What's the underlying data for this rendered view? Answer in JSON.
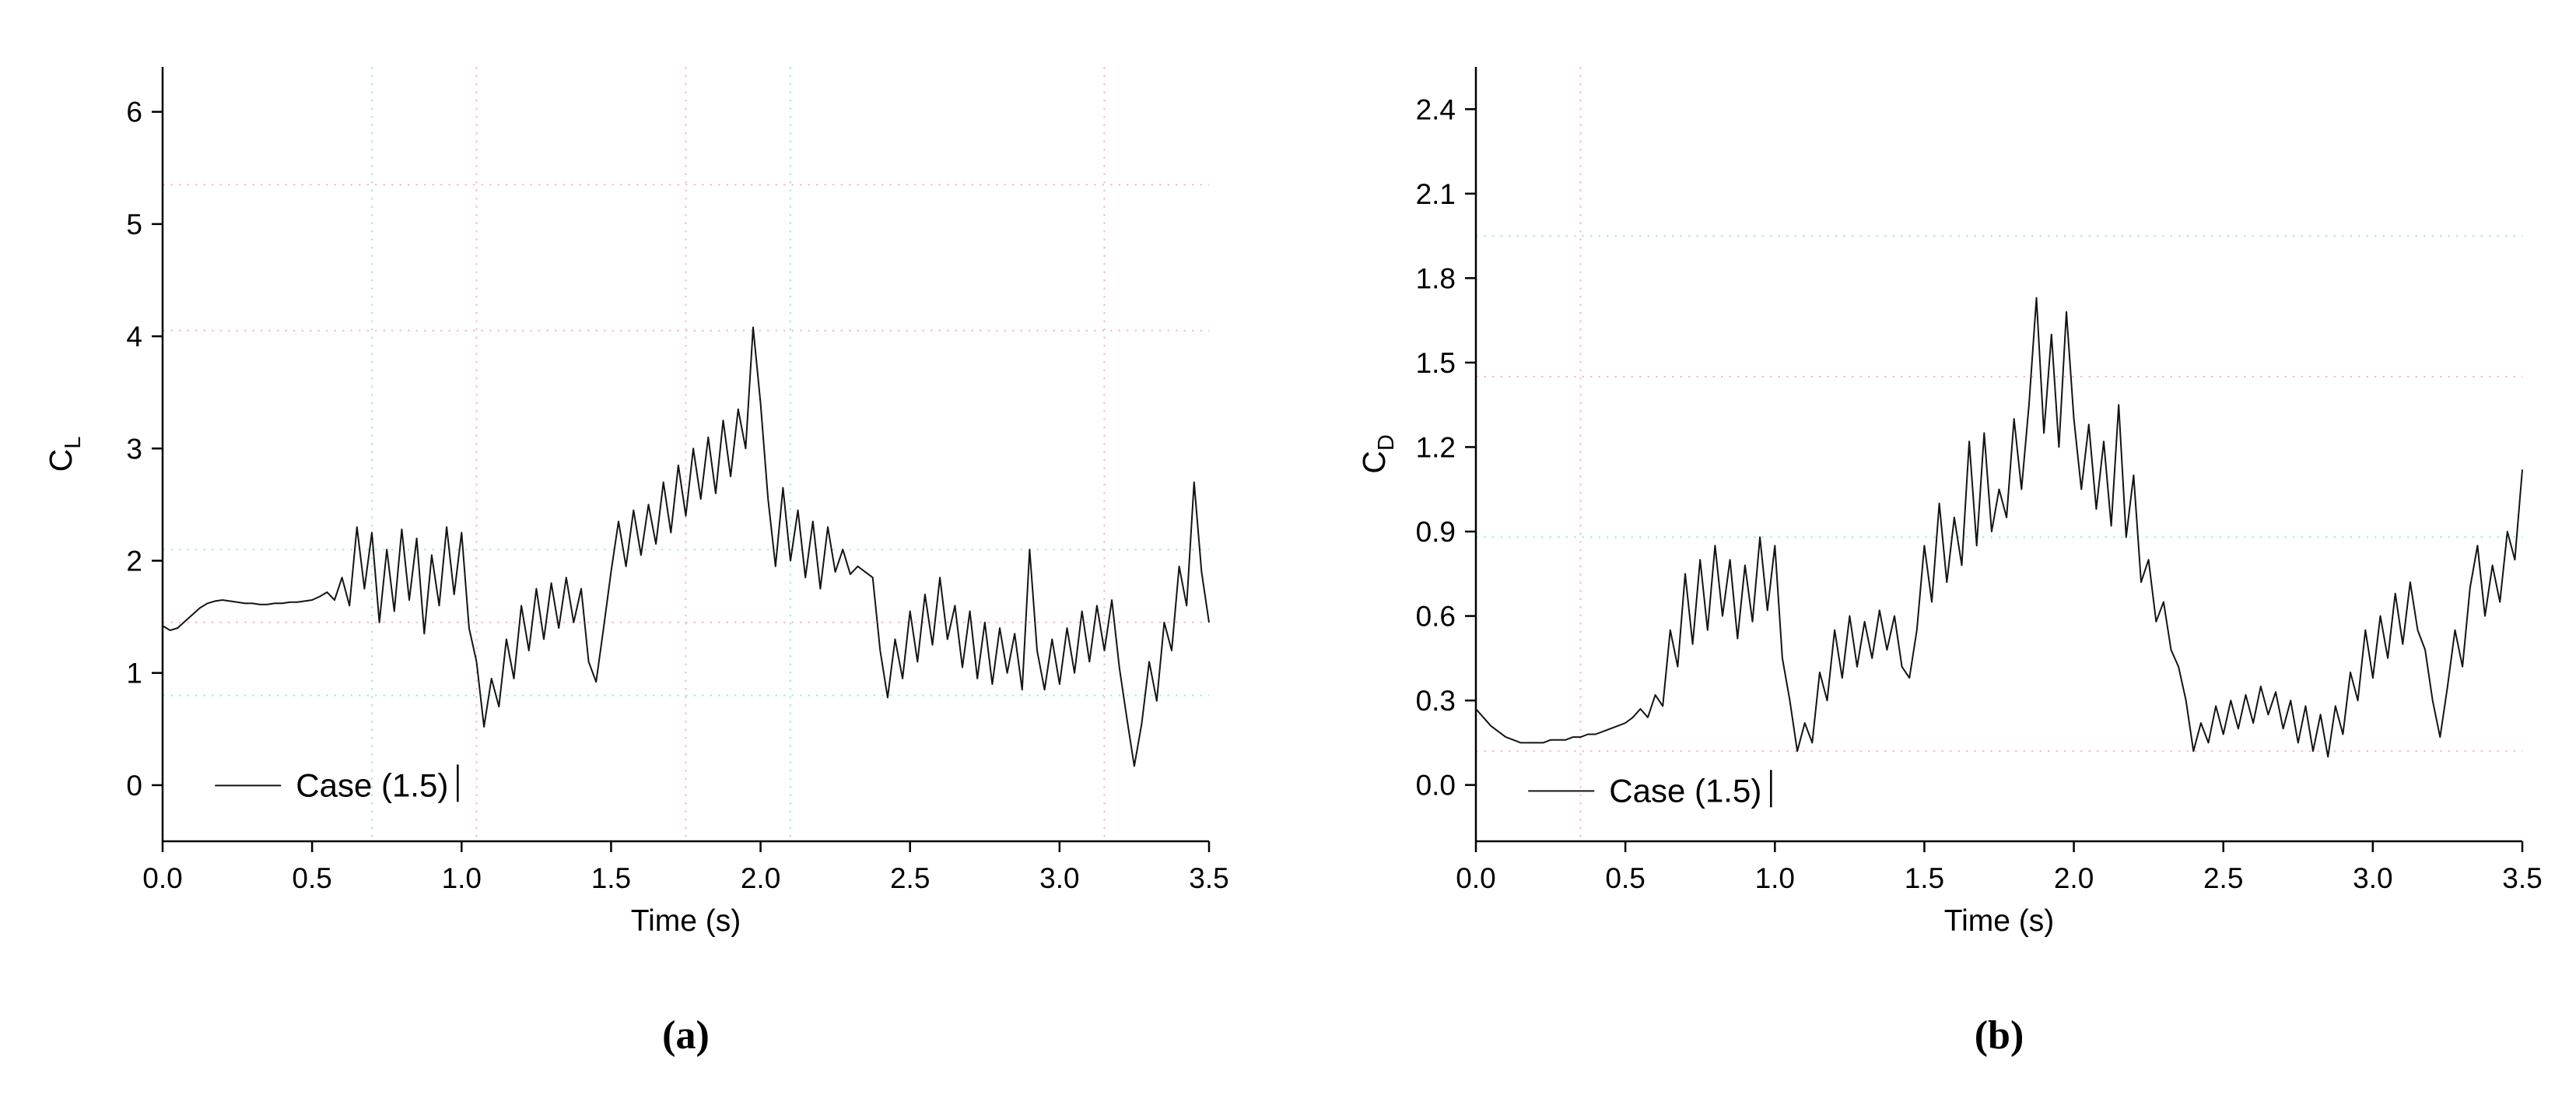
{
  "page": {
    "background": "#ffffff"
  },
  "captions": {
    "a": "(a)",
    "b": "(b)"
  },
  "colors": {
    "line": "#141414",
    "axis": "#000000",
    "grid_pink": "#f8b7d4",
    "grid_cyan": "#a5e9e5"
  },
  "chart_data": [
    {
      "type": "line",
      "title": "",
      "xlabel": "Time (s)",
      "ylabel": "C_L",
      "ylabel_main": "C",
      "ylabel_sub": "L",
      "xlim": [
        0,
        3.5
      ],
      "ylim": [
        0,
        6
      ],
      "ylim_display": [
        -0.5,
        6.4
      ],
      "xticks": [
        0.0,
        0.5,
        1.0,
        1.5,
        2.0,
        2.5,
        3.0,
        3.5
      ],
      "xtick_labels": [
        "0.0",
        "0.5",
        "1.0",
        "1.5",
        "2.0",
        "2.5",
        "3.0",
        "3.5"
      ],
      "yticks": [
        0,
        1,
        2,
        3,
        4,
        5,
        6
      ],
      "ytick_labels": [
        "0",
        "1",
        "2",
        "3",
        "4",
        "5",
        "6"
      ],
      "grid_h": [
        {
          "v": 5.35,
          "c": "pink"
        },
        {
          "v": 4.05,
          "c": "pink"
        },
        {
          "v": 2.1,
          "c": "cyan"
        },
        {
          "v": 1.45,
          "c": "pink"
        },
        {
          "v": 0.8,
          "c": "cyan"
        }
      ],
      "grid_v": [
        {
          "v": 0.7,
          "c": "cyan"
        },
        {
          "v": 1.05,
          "c": "pink"
        },
        {
          "v": 1.75,
          "c": "pink"
        },
        {
          "v": 2.1,
          "c": "cyan"
        },
        {
          "v": 3.15,
          "c": "pink"
        }
      ],
      "legend": {
        "label": "Case (1.5)",
        "position": "bottom-left"
      },
      "legend_frac": {
        "x": 0.05,
        "y": 0.928
      },
      "series": [
        {
          "name": "Case (1.5)",
          "t0": 0,
          "dt": 0.025,
          "values": [
            1.42,
            1.38,
            1.4,
            1.46,
            1.52,
            1.58,
            1.62,
            1.64,
            1.65,
            1.64,
            1.63,
            1.62,
            1.62,
            1.61,
            1.61,
            1.62,
            1.62,
            1.63,
            1.63,
            1.64,
            1.65,
            1.68,
            1.72,
            1.65,
            1.85,
            1.6,
            2.3,
            1.75,
            2.25,
            1.45,
            2.1,
            1.55,
            2.28,
            1.65,
            2.2,
            1.35,
            2.05,
            1.6,
            2.3,
            1.7,
            2.25,
            1.4,
            1.1,
            0.52,
            0.95,
            0.7,
            1.3,
            0.95,
            1.6,
            1.2,
            1.75,
            1.3,
            1.8,
            1.4,
            1.85,
            1.45,
            1.75,
            1.1,
            0.92,
            1.4,
            1.9,
            2.35,
            1.95,
            2.45,
            2.05,
            2.5,
            2.15,
            2.7,
            2.25,
            2.85,
            2.4,
            3.0,
            2.55,
            3.1,
            2.6,
            3.25,
            2.75,
            3.35,
            3.0,
            4.08,
            3.4,
            2.55,
            1.95,
            2.65,
            2.0,
            2.45,
            1.85,
            2.35,
            1.75,
            2.3,
            1.9,
            2.1,
            1.88,
            1.95,
            1.9,
            1.85,
            1.2,
            0.78,
            1.3,
            0.95,
            1.55,
            1.1,
            1.7,
            1.25,
            1.85,
            1.3,
            1.6,
            1.05,
            1.55,
            0.95,
            1.45,
            0.9,
            1.4,
            1.0,
            1.35,
            0.85,
            2.1,
            1.2,
            0.85,
            1.3,
            0.9,
            1.4,
            1.0,
            1.55,
            1.1,
            1.6,
            1.2,
            1.65,
            1.05,
            0.6,
            0.17,
            0.55,
            1.1,
            0.75,
            1.45,
            1.2,
            1.95,
            1.6,
            2.7,
            1.9,
            1.45
          ]
        }
      ]
    },
    {
      "type": "line",
      "title": "",
      "xlabel": "Time (s)",
      "ylabel": "C_D",
      "ylabel_main": "C",
      "ylabel_sub": "D",
      "xlim": [
        0,
        3.5
      ],
      "ylim": [
        0,
        2.4
      ],
      "ylim_display": [
        -0.2,
        2.55
      ],
      "xticks": [
        0.0,
        0.5,
        1.0,
        1.5,
        2.0,
        2.5,
        3.0,
        3.5
      ],
      "xtick_labels": [
        "0.0",
        "0.5",
        "1.0",
        "1.5",
        "2.0",
        "2.5",
        "3.0",
        "3.5"
      ],
      "yticks": [
        0.0,
        0.3,
        0.6,
        0.9,
        1.2,
        1.5,
        1.8,
        2.1,
        2.4
      ],
      "ytick_labels": [
        "0.0",
        "0.3",
        "0.6",
        "0.9",
        "1.2",
        "1.5",
        "1.8",
        "2.1",
        "2.4"
      ],
      "grid_h": [
        {
          "v": 1.95,
          "c": "cyan"
        },
        {
          "v": 1.45,
          "c": "pink"
        },
        {
          "v": 0.88,
          "c": "cyan"
        },
        {
          "v": 0.12,
          "c": "pink"
        }
      ],
      "grid_v": [
        {
          "v": 0.35,
          "c": "pink"
        }
      ],
      "legend": {
        "label": "Case (1.5)",
        "position": "bottom-left"
      },
      "legend_frac": {
        "x": 0.05,
        "y": 0.935
      },
      "series": [
        {
          "name": "Case (1.5)",
          "t0": 0,
          "dt": 0.025,
          "values": [
            0.27,
            0.24,
            0.21,
            0.19,
            0.17,
            0.16,
            0.15,
            0.15,
            0.15,
            0.15,
            0.16,
            0.16,
            0.16,
            0.17,
            0.17,
            0.18,
            0.18,
            0.19,
            0.2,
            0.21,
            0.22,
            0.24,
            0.27,
            0.24,
            0.32,
            0.28,
            0.55,
            0.42,
            0.75,
            0.5,
            0.8,
            0.55,
            0.85,
            0.6,
            0.8,
            0.52,
            0.78,
            0.58,
            0.88,
            0.62,
            0.85,
            0.45,
            0.3,
            0.12,
            0.22,
            0.15,
            0.4,
            0.3,
            0.55,
            0.38,
            0.6,
            0.42,
            0.58,
            0.45,
            0.62,
            0.48,
            0.6,
            0.42,
            0.38,
            0.55,
            0.85,
            0.65,
            1.0,
            0.72,
            0.95,
            0.78,
            1.22,
            0.85,
            1.25,
            0.9,
            1.05,
            0.95,
            1.3,
            1.05,
            1.35,
            1.73,
            1.25,
            1.6,
            1.2,
            1.68,
            1.3,
            1.05,
            1.28,
            0.98,
            1.22,
            0.92,
            1.35,
            0.88,
            1.1,
            0.72,
            0.8,
            0.58,
            0.65,
            0.48,
            0.42,
            0.3,
            0.12,
            0.22,
            0.15,
            0.28,
            0.18,
            0.3,
            0.2,
            0.32,
            0.22,
            0.35,
            0.25,
            0.33,
            0.2,
            0.3,
            0.15,
            0.28,
            0.12,
            0.25,
            0.1,
            0.28,
            0.18,
            0.4,
            0.3,
            0.55,
            0.38,
            0.6,
            0.45,
            0.68,
            0.5,
            0.72,
            0.55,
            0.48,
            0.3,
            0.17,
            0.35,
            0.55,
            0.42,
            0.7,
            0.85,
            0.6,
            0.78,
            0.65,
            0.9,
            0.8,
            1.12
          ]
        }
      ]
    }
  ]
}
